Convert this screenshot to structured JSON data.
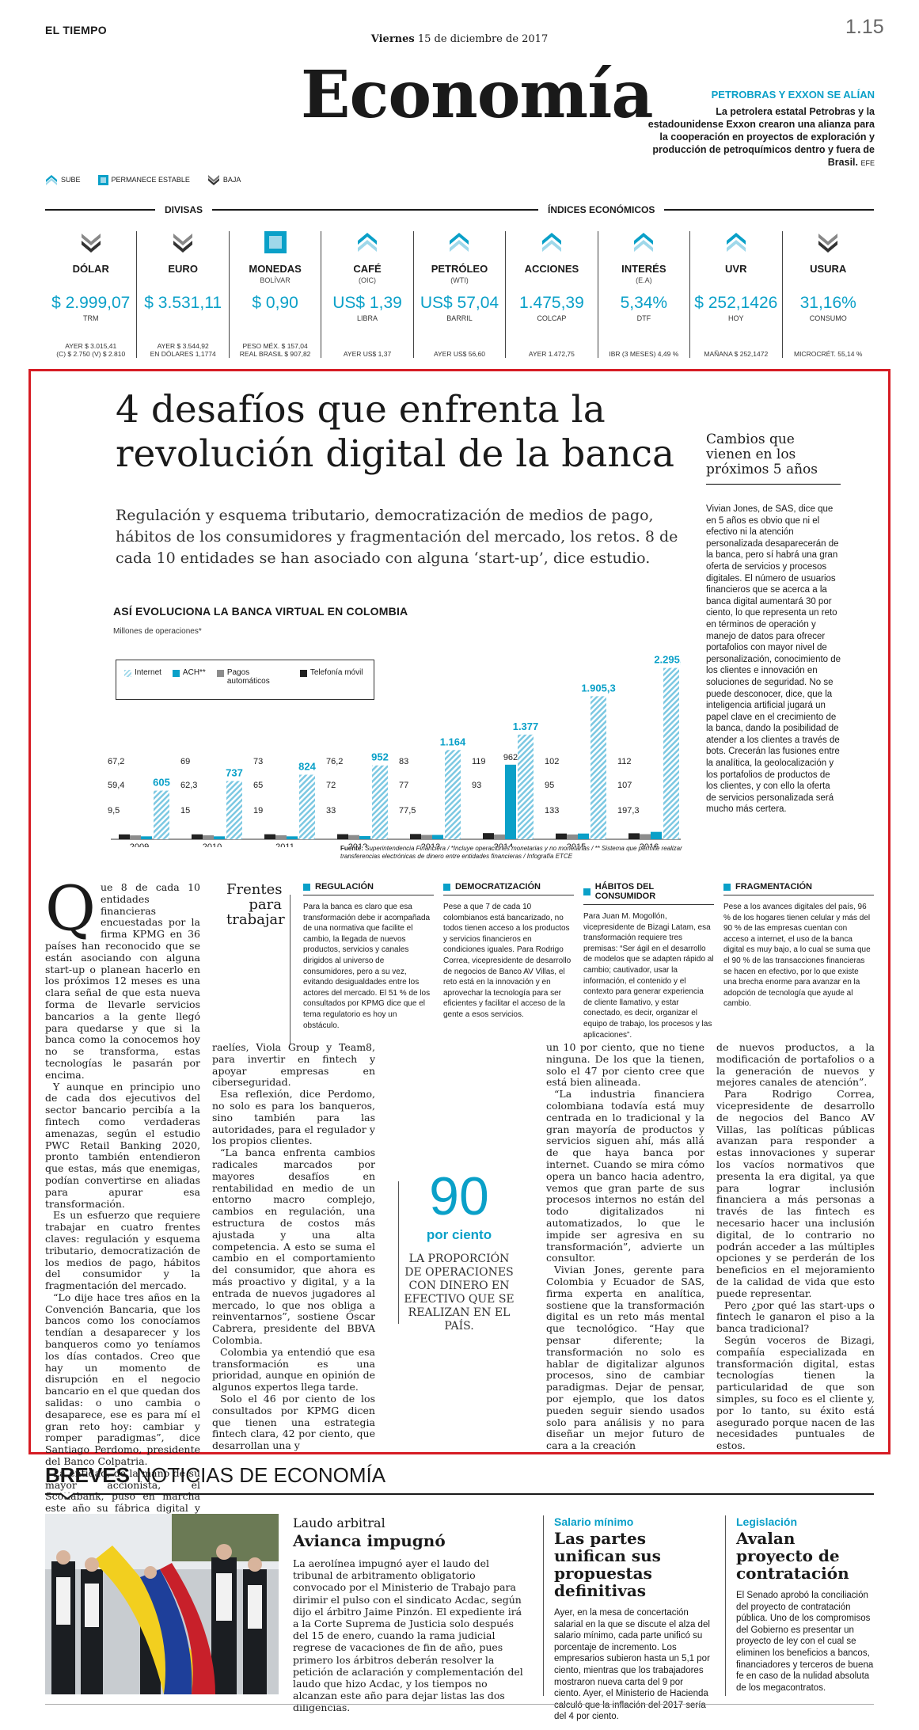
{
  "header": {
    "masthead": "EL TIEMPO",
    "date_day": "Viernes",
    "date_rest": "15 de diciembre de 2017",
    "page_number": "1.15",
    "section": "Economía"
  },
  "side_news": {
    "headline": "PETROBRAS Y EXXON SE ALÍAN",
    "body": "La petrolera estatal Petrobras y la estadounidense Exxon crearon una alianza para la cooperación en proyectos de exploración y producción de petroquímicos dentro y fuera de Brasil.",
    "credit": "EFE"
  },
  "legend": {
    "up": "SUBE",
    "stable": "PERMANECE ESTABLE",
    "down": "BAJA"
  },
  "indicators_labels": {
    "divisas": "DIVISAS",
    "economicos": "ÍNDICES ECONÓMICOS"
  },
  "indicators": [
    {
      "name": "DÓLAR",
      "sub": "",
      "value": "$ 2.999,07",
      "unit": "TRM",
      "trend": "down",
      "foot1": "AYER $ 3.015,41",
      "foot2": "(C) $ 2.750 (V) $ 2.810"
    },
    {
      "name": "EURO",
      "sub": "",
      "value": "$ 3.531,11",
      "unit": "",
      "trend": "down",
      "foot1": "AYER $ 3.544,92",
      "foot2": "EN DÓLARES 1,1774"
    },
    {
      "name": "MONEDAS",
      "sub": "BOLÍVAR",
      "value": "$ 0,90",
      "unit": "",
      "trend": "stable",
      "foot1": "PESO MÉX. $ 157,04",
      "foot2": "REAL BRASIL $ 907,82"
    },
    {
      "name": "CAFÉ",
      "sub": "(OIC)",
      "value": "US$ 1,39",
      "unit": "LIBRA",
      "trend": "up",
      "foot1": "AYER US$ 1,37",
      "foot2": ""
    },
    {
      "name": "PETRÓLEO",
      "sub": "(WTI)",
      "value": "US$ 57,04",
      "unit": "BARRIL",
      "trend": "up",
      "foot1": "AYER US$ 56,60",
      "foot2": ""
    },
    {
      "name": "ACCIONES",
      "sub": "",
      "value": "1.475,39",
      "unit": "COLCAP",
      "trend": "up",
      "foot1": "AYER 1.472,75",
      "foot2": ""
    },
    {
      "name": "INTERÉS",
      "sub": "(E.A)",
      "value": "5,34%",
      "unit": "DTF",
      "trend": "up",
      "foot1": "IBR (3 MESES) 4,49 %",
      "foot2": ""
    },
    {
      "name": "UVR",
      "sub": "",
      "value": "$ 252,1426",
      "unit": "HOY",
      "trend": "up",
      "foot1": "MAÑANA $ 252,1472",
      "foot2": ""
    },
    {
      "name": "USURA",
      "sub": "",
      "value": "31,16%",
      "unit": "CONSUMO",
      "trend": "down",
      "foot1": "MICROCRÉT. 55,14 %",
      "foot2": ""
    }
  ],
  "article": {
    "headline": "4 desafíos que enfrenta la revolución digital de la banca",
    "subtitle": "Regulación y esquema tributario, democratización de medios de pago, hábitos de los consumidores y fragmentación del mercado, los retos. 8 de cada 10 entidades se han asociado con alguna ‘start-up’, dice estudio.",
    "sidebar_title": "Cambios que vienen en los próximos 5 años",
    "sidebar_body": "Vivian Jones, de SAS, dice que en 5 años es obvio que ni el efectivo ni la atención personalizada desaparecerán de la banca, pero sí habrá una gran oferta de servicios y procesos digitales. El número de usuarios financieros que se acerca a la banca digital aumentará 30 por ciento, lo que representa un reto en términos de operación y manejo de datos para ofrecer portafolios con mayor nivel de personalización, conocimiento de los clientes e innovación en soluciones de seguridad. No se puede desconocer, dice, que la inteligencia artificial jugará un papel clave en el crecimiento de la banca, dando la posibilidad de atender a los clientes a través de bots. Crecerán las fusiones entre la analítica, la geolocalización y los portafolios de productos de los clientes, y con ello la oferta de servicios personalizada será mucho más certera.",
    "col1_intro": "ue 8 de cada 10 entidades financieras encuestadas por la firma KPMG en 36 países han reconocido que se están asociando con alguna start-up o planean hacerlo en los próximos 12 meses es una clara señal de que esta nueva forma de llevarle servicios bancarios a la gente llegó para quedarse y que si la banca como la conocemos hoy no se transforma, estas tecnologías le pasarán por encima.",
    "col1_p2": "Y aunque en principio uno de cada dos ejecutivos del sector bancario percibía a la fintech como verdaderas amenazas, según el estudio PWC Retail Banking 2020, pronto también entendieron que estas, más que enemigas, podían convertirse en aliadas para apurar esa transformación.",
    "col1_p3": "Es un esfuerzo que requiere trabajar en cuatro frentes claves: regulación y esquema tributario, democratización de los medios de pago, hábitos del consumidor y la fragmentación del mercado.",
    "col1_p4": "“Lo dije hace tres años en la Convención Bancaria, que los bancos como los conocíamos tendían a desaparecer y los banqueros como yo teníamos los días contados. Creo que hay un momento de disrupción en el negocio bancario en el que quedan dos salidas: o uno cambia o desaparece, ese es para mí el gran reto hoy: cambiar y romper paradigmas”, dice Santiago Perdomo, presidente del Banco Colpatria.",
    "col1_p5": "La entidad, de la mano de su mayor accionista, el Scotiabank, puso en marcha este año su fábrica digital y ahora anuncian alianzas con dos líderes tecnológicos is-",
    "col2_p1": "raelíes, Viola Group y Team8, para invertir en fintech y apoyar empresas en ciberseguridad.",
    "col2_p2": "Esa reflexión, dice Perdomo, no solo es para los banqueros, sino también para las autoridades, para el regulador y los propios clientes.",
    "col2_p3": "“La banca enfrenta cambios radicales marcados por mayores desafíos en rentabilidad en medio de un entorno macro complejo, cambios en regulación, una estructura de costos más ajustada y una alta competencia. A esto se suma el cambio en el comportamiento del consumidor, que ahora es más proactivo y digital, y a la entrada de nuevos jugadores al mercado, lo que nos obliga a reinventarnos”, sostiene Óscar Cabrera, presidente del BBVA Colombia.",
    "col2_p4": "Colombia ya entendió que esa transformación es una prioridad, aunque en opinión de algunos expertos llega tarde.",
    "col2_p5": "Solo el 46 por ciento de los consultados por KPMG dicen que tienen una estrategia fintech clara, 42 por ciento, que desarrollan una y",
    "col3_p1": "un 10 por ciento, que no tiene ninguna. De los que la tienen, solo el 47 por ciento cree que está bien alineada.",
    "col3_p2": "“La industria financiera colombiana todavía está muy centrada en lo tradicional y la gran mayoría de productos y servicios siguen ahí, más allá de que haya banca por internet. Cuando se mira cómo opera un banco hacia adentro, vemos que gran parte de sus procesos internos no están del todo digitalizados ni automatizados, lo que le impide ser agresiva en su transformación”, advierte un consultor.",
    "col3_p3": "Vivian Jones, gerente para Colombia y Ecuador de SAS, firma experta en analítica, sostiene que la transformación digital es un reto más mental que tecnológico. “Hay que pensar diferente; la transformación no solo es hablar de digitalizar algunos procesos, sino de cambiar paradigmas. Dejar de pensar, por ejemplo, que los datos pueden seguir siendo usados solo para análisis y no para diseñar un mejor futuro de cara a la creación",
    "col4_p1": "de nuevos productos, a la modificación de portafolios o a la generación de nuevos y mejores canales de atención”.",
    "col4_p2": "Para Rodrigo Correa, vicepresidente de desarrollo de negocios del Banco AV Villas, las políticas públicas avanzan para responder a estas innovaciones y superar los vacíos normativos que presenta la era digital, ya que para lograr inclusión financiera a más personas a través de las fintech es necesario hacer una inclusión digital, de lo contrario no podrán acceder a las múltiples opciones y se perderán de los beneficios en el mejoramiento de la calidad de vida que esto puede representar.",
    "col4_p3": "Pero ¿por qué las start-ups o fintech le ganaron el piso a la banca tradicional?",
    "col4_p4": "Según voceros de Bizagi, compañía especializada en transformación digital, estas tecnologías tienen la particularidad de que son simples, su foco es el cliente y, por lo tanto, su éxito está asegurado porque nacen de las necesidades puntuales de estos.",
    "dropcap": "Q"
  },
  "quote": {
    "number": "90",
    "unit": "por ciento",
    "text": "LA PROPORCIÓN DE OPERACIONES CON DINERO EN EFECTIVO QUE SE REALIZAN EN EL PAÍS."
  },
  "frentes": {
    "title": "Frentes para trabajar",
    "items": [
      {
        "head": "REGULACIÓN",
        "body": "Para la banca es claro que esa transformación debe ir acompañada de una normativa que facilite el cambio, la llegada de nuevos productos, servicios y canales dirigidos al universo de consumidores, pero a su vez, evitando desigualdades entre los actores del mercado. El 51 % de los consultados por KPMG dice que el tema regulatorio es hoy un obstáculo."
      },
      {
        "head": "DEMOCRATIZACIÓN",
        "body": "Pese a que 7 de cada 10 colombianos está bancarizado, no todos tienen acceso a los productos y servicios financieros en condiciones iguales. Para Rodrigo Correa, vicepresidente de desarrollo de negocios de Banco AV Villas, el reto está en la innovación y en aprovechar la tecnología para ser eficientes y facilitar el acceso de la gente a esos servicios."
      },
      {
        "head": "HÁBITOS DEL CONSUMIDOR",
        "body": "Para Juan M. Mogollón, vicepresidente de Bizagi Latam, esa transformación requiere tres premisas: “Ser ágil en el desarrollo de modelos que se adapten rápido al cambio; cautivador, usar la información, el contenido y el contexto para generar experiencia de cliente llamativo, y estar conectado, es decir, organizar el equipo de trabajo, los procesos y las aplicaciones”."
      },
      {
        "head": "FRAGMENTACIÓN",
        "body": "Pese a los avances digitales del país, 96 % de los hogares tienen celular y más del 90 % de las empresas cuentan con acceso a internet, el uso de la banca digital es muy bajo, a lo cual se suma que el 90 % de las transacciones financieras se hacen en efectivo, por lo que existe una brecha enorme para avanzar en la adopción de tecnología que ayude al cambio."
      }
    ]
  },
  "chart_data": {
    "type": "bar",
    "title": "ASÍ EVOLUCIONA LA BANCA VIRTUAL EN COLOMBIA",
    "subtitle": "Millones de operaciones*",
    "categories": [
      "2009",
      "2010",
      "2011",
      "2012",
      "2013",
      "2014",
      "2015",
      "2016"
    ],
    "series": [
      {
        "name": "Internet",
        "values": [
          605,
          737,
          824,
          952,
          1164,
          1377,
          1905.3,
          2295.1
        ],
        "labels": [
          "605",
          "737",
          "824",
          "952",
          "1.164",
          "1.377",
          "1.905,3",
          "2.295,1"
        ],
        "color": "#9fd8ea"
      },
      {
        "name": "ACH**",
        "values": [
          9.5,
          15,
          19,
          33,
          77.5,
          962,
          133,
          197.3
        ],
        "labels": [
          "9,5",
          "15",
          "19",
          "33",
          "77,5",
          "962",
          "133",
          "197,3"
        ],
        "color": "#0aa0c8"
      },
      {
        "name": "Pagos automáticos",
        "values": [
          59.4,
          62.3,
          65,
          72,
          77,
          93,
          95,
          107
        ],
        "labels": [
          "59,4",
          "62,3",
          "65",
          "72",
          "77",
          "93",
          "95",
          "107"
        ],
        "color": "#8c8c8c"
      },
      {
        "name": "Telefonía móvil",
        "values": [
          67.2,
          69,
          73,
          76.2,
          83,
          119,
          102,
          112
        ],
        "labels": [
          "67,2",
          "69",
          "73",
          "76,2",
          "83",
          "119",
          "102",
          "112"
        ],
        "color": "#222222"
      }
    ],
    "source_label": "Fuente:",
    "source": "Superintendencia Financiera / *Incluye operaciones monetarias y no monetarias / ** Sistema que permite realizar transferencias electrónicas de dinero entre entidades financieras / Infografía ETCE",
    "ylim": [
      0,
      2400
    ]
  },
  "breves": {
    "title_bold": "BREVES",
    "title_rest": "NOTICIAS DE ECONOMÍA",
    "items": [
      {
        "kicker": "Laudo arbitral",
        "headline": "Avianca impugnó",
        "text": "La aerolínea impugnó ayer el laudo del tribunal de arbitramento obligatorio convocado por el Ministerio de Trabajo para dirimir el pulso con el sindicato Acdac, según dijo el árbitro Jaime Pinzón. El expediente irá a la Corte Suprema de Justicia solo después del 15 de enero, cuando la rama judicial regrese de vacaciones de fin de año, pues primero los árbitros deberán resolver la petición de aclaración y complementación del laudo que hizo Acdac, y los tiempos no alcanzan este año para dejar listas las dos diligencias."
      },
      {
        "kicker": "Salario mínimo",
        "headline": "Las partes unifican sus propuestas definitivas",
        "text": "Ayer, en la mesa de concertación salarial en la que se discute el alza del salario mínimo, cada parte unificó su porcentaje de incremento. Los empresarios subieron hasta un 5,1 por ciento, mientras que los trabajadores mostraron nueva carta del 9 por ciento. Ayer, el Ministerio de Hacienda calculó que la inflación del 2017 sería del 4 por ciento."
      },
      {
        "kicker": "Legislación",
        "headline": "Avalan proyecto de contratación",
        "text": "El Senado aprobó la conciliación del proyecto de contratación pública. Uno de los compromisos del Gobierno es presentar un proyecto de ley con el cual se eliminen los beneficios a bancos, financiadores y terceros de buena fe en caso de la nulidad absoluta de los megacontratos."
      }
    ]
  }
}
